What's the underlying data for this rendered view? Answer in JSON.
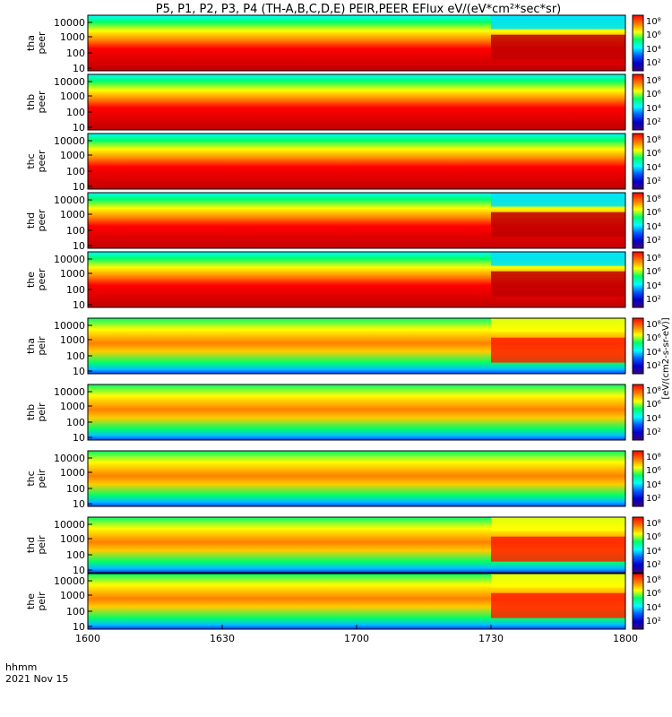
{
  "chart_data": {
    "type": "heatmap",
    "title": "P5, P1, P2, P3, P4 (TH-A,B,C,D,E) PEIR,PEER EFlux eV/(eV*cm²*sec*sr)",
    "x_axis": {
      "ticks": [
        "1600",
        "1630",
        "1700",
        "1730",
        "1800"
      ],
      "label_line1": "hhmm",
      "label_line2": "2021 Nov 15"
    },
    "y_ticks": [
      "10000",
      "1000",
      "100",
      "10"
    ],
    "colorbar": {
      "ticks": [
        "10⁸",
        "10⁶",
        "10⁴",
        "10²"
      ],
      "label": "[eV/(cm2-s-sr-eV)]",
      "colors": [
        "#ff0000",
        "#ff8000",
        "#ffff00",
        "#00ff66",
        "#00ffff",
        "#0060ff",
        "#0000cc",
        "#400080"
      ]
    },
    "panels": [
      {
        "probe": "tha",
        "species": "peer",
        "label": "tha\npeer",
        "baseline": "red",
        "late_change_hhmm": "1730"
      },
      {
        "probe": "thb",
        "species": "peer",
        "label": "thb\npeer",
        "baseline": "red",
        "late_change_hhmm": null
      },
      {
        "probe": "thc",
        "species": "peer",
        "label": "thc\npeer",
        "baseline": "red",
        "late_change_hhmm": null
      },
      {
        "probe": "thd",
        "species": "peer",
        "label": "thd\npeer",
        "baseline": "red",
        "late_change_hhmm": "1730"
      },
      {
        "probe": "the",
        "species": "peer",
        "label": "the\npeer",
        "baseline": "red",
        "late_change_hhmm": "1730"
      },
      {
        "probe": "tha",
        "species": "peir",
        "label": "tha\npeir",
        "baseline": "yellow",
        "late_change_hhmm": "1730"
      },
      {
        "probe": "thb",
        "species": "peir",
        "label": "thb\npeir",
        "baseline": "yellow",
        "late_change_hhmm": null
      },
      {
        "probe": "thc",
        "species": "peir",
        "label": "thc\npeir",
        "baseline": "yellow",
        "late_change_hhmm": null
      },
      {
        "probe": "thd",
        "species": "peir",
        "label": "thd\npeir",
        "baseline": "yellow",
        "late_change_hhmm": "1730"
      },
      {
        "probe": "the",
        "species": "peir",
        "label": "the\npeir",
        "baseline": "yellow",
        "late_change_hhmm": "1730"
      }
    ]
  }
}
